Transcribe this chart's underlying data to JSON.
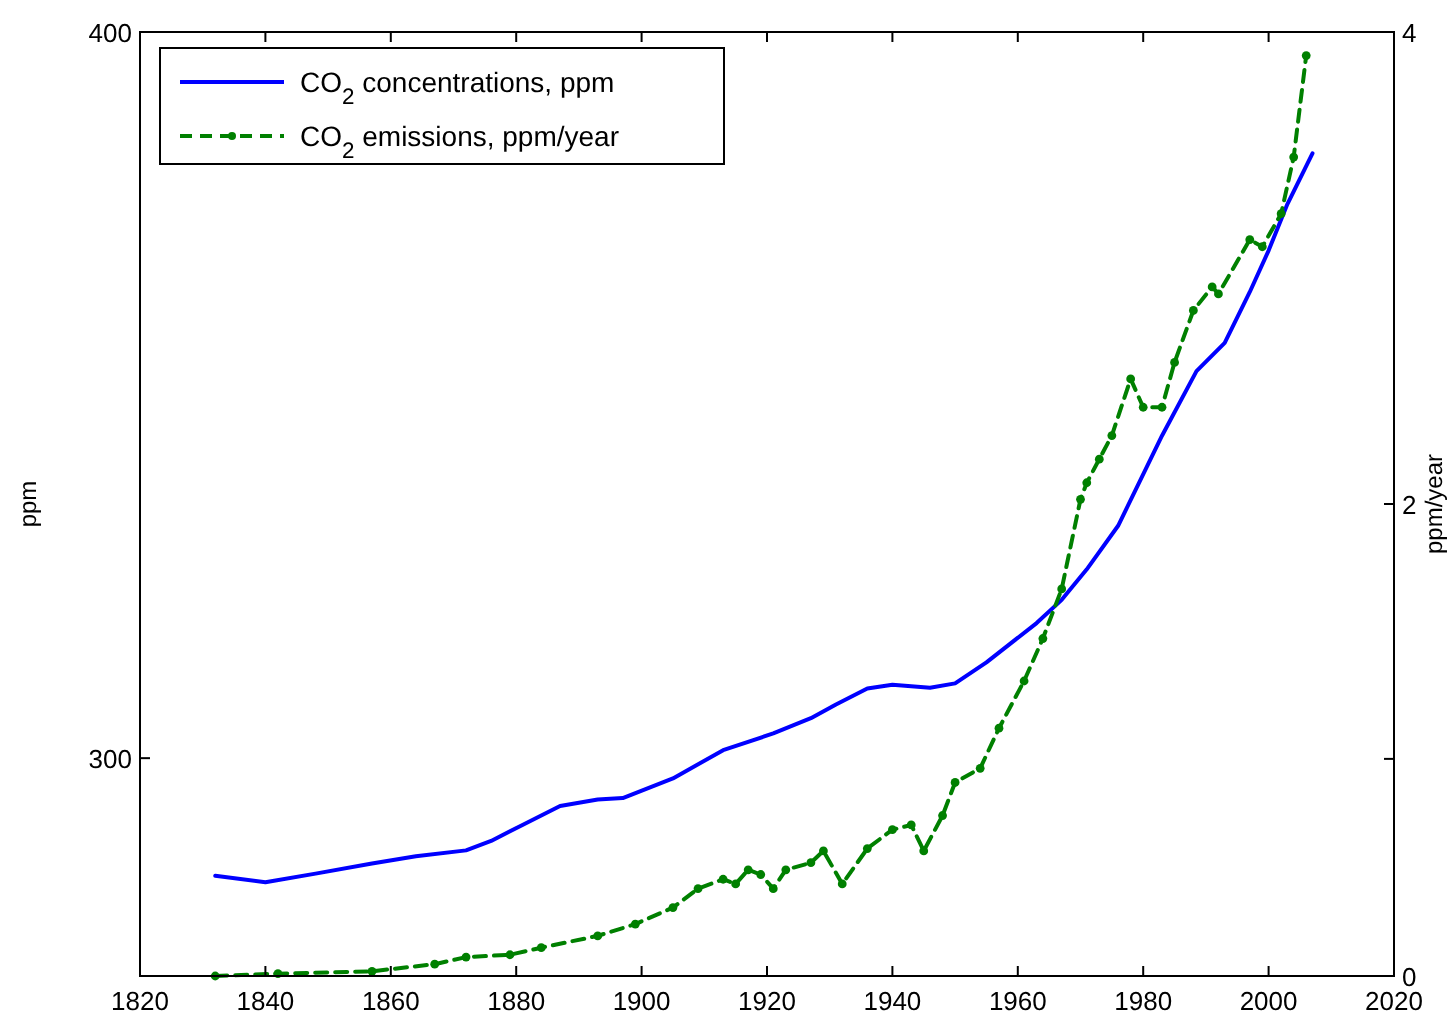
{
  "chart_data": {
    "type": "line",
    "ylabel": "ppm",
    "y2label": "ppm/year",
    "xlim": [
      1820,
      2020
    ],
    "xticks": [
      1820,
      1840,
      1860,
      1880,
      1900,
      1920,
      1940,
      1960,
      1980,
      2000,
      2020
    ],
    "ylim": [
      270,
      400
    ],
    "yticks": [
      300,
      400
    ],
    "y2lim": [
      0,
      4
    ],
    "y2ticks": [
      0,
      {
        "value": 0.92,
        "label": null
      },
      2,
      4
    ],
    "legend": "top left",
    "grid": false,
    "series": [
      {
        "name": "CO$_{2}$ concentrations, ppm",
        "color": "#0000ff",
        "line_style": "solid",
        "marker": "none",
        "x": [
          1832,
          1840,
          1848,
          1857,
          1864,
          1872,
          1876,
          1881,
          1887,
          1893,
          1897,
          1905,
          1913,
          1921,
          1927,
          1931,
          1936,
          1940,
          1946,
          1950,
          1955,
          1963,
          1967,
          1971,
          1976,
          1983,
          1988.5,
          1993,
          1997,
          2000,
          2003,
          2007
        ],
        "values": [
          283.8,
          282.9,
          284.1,
          285.5,
          286.5,
          287.3,
          288.6,
          290.8,
          293.4,
          294.3,
          294.5,
          297.2,
          301.1,
          303.4,
          305.5,
          307.4,
          309.6,
          310.1,
          309.7,
          310.3,
          313.2,
          318.6,
          321.8,
          326,
          332,
          344.4,
          353.3,
          357.2,
          364.2,
          369.9,
          376.3,
          383.3
        ]
      },
      {
        "name": "CO$_{2}$ emissions, ppm/year",
        "color": "#008000",
        "axis": "y2",
        "line_style": "dashed",
        "marker": "circle",
        "x": [
          1832,
          1842,
          1857,
          1867,
          1872,
          1879,
          1884,
          1893,
          1899,
          1905,
          1909,
          1913,
          1915,
          1917,
          1919,
          1921,
          1923,
          1927,
          1929,
          1932,
          1936,
          1940,
          1943,
          1945,
          1948,
          1950,
          1954,
          1957,
          1961,
          1964,
          1967,
          1970,
          1971,
          1973,
          1975,
          1978,
          1980,
          1983,
          1985,
          1988,
          1991,
          1992,
          1997,
          1999,
          2002,
          2004,
          2006
        ],
        "values": [
          0,
          0.01,
          0.02,
          0.05,
          0.08,
          0.09,
          0.12,
          0.17,
          0.22,
          0.29,
          0.37,
          0.41,
          0.39,
          0.45,
          0.43,
          0.37,
          0.45,
          0.48,
          0.53,
          0.39,
          0.54,
          0.62,
          0.64,
          0.53,
          0.68,
          0.82,
          0.88,
          1.05,
          1.25,
          1.43,
          1.64,
          2.02,
          2.09,
          2.19,
          2.29,
          2.53,
          2.41,
          2.41,
          2.6,
          2.82,
          2.92,
          2.89,
          3.12,
          3.09,
          3.23,
          3.47,
          3.9
        ]
      }
    ]
  }
}
